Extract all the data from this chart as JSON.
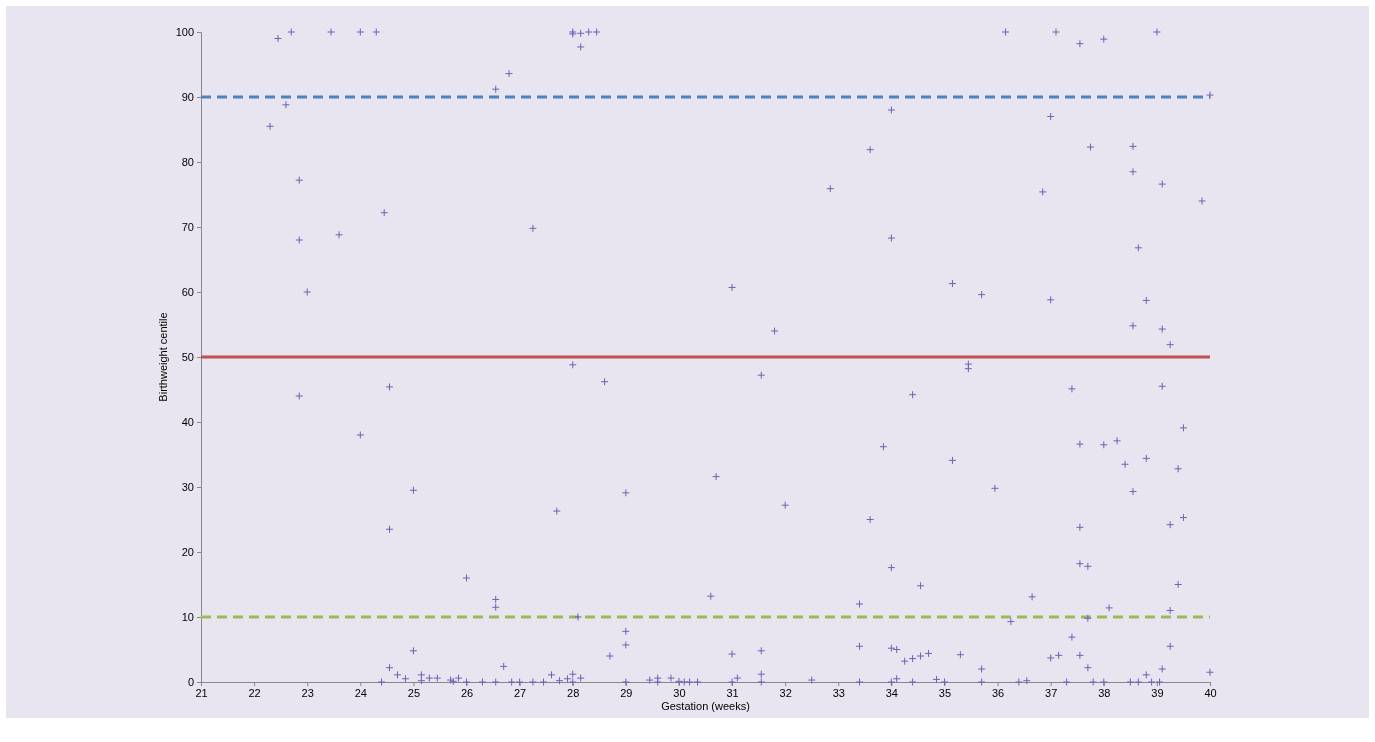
{
  "chart_data": {
    "type": "scatter",
    "xlabel": "Gestation (weeks)",
    "ylabel": "Birthweight centile",
    "marker": "cross",
    "grid": false,
    "xlim": [
      21,
      40
    ],
    "xticks": [
      21,
      22,
      23,
      24,
      25,
      26,
      27,
      28,
      29,
      30,
      31,
      32,
      33,
      34,
      35,
      36,
      37,
      38,
      39,
      40
    ],
    "ylim": [
      0,
      100
    ],
    "yticks": [
      0,
      10,
      20,
      30,
      40,
      50,
      60,
      70,
      80,
      90,
      100
    ],
    "ref_lines": [
      {
        "axis": "y",
        "value": 90,
        "color": "#4f81bd",
        "line_style": "dashed"
      },
      {
        "axis": "y",
        "value": 50,
        "color": "#c0504d",
        "line_style": "solid"
      },
      {
        "axis": "y",
        "value": 10,
        "color": "#9bbb59",
        "line_style": "dashed"
      }
    ],
    "series": [
      {
        "color": "#7060b8",
        "x": [
          22.3,
          22.45,
          22.6,
          22.7,
          22.85,
          22.85,
          22.85,
          23.0,
          23.45,
          23.6,
          24.0,
          24.0,
          24.3,
          24.45,
          24.55,
          24.55,
          25.0,
          26.55,
          26.8,
          27.25,
          26.55,
          26.55,
          26.0,
          28.0,
          28.0,
          28.15,
          28.3,
          28.45,
          28.15,
          28.0,
          28.6,
          27.7,
          29.0,
          28.1,
          29.0,
          29.0,
          28.7,
          30.6,
          30.7,
          31.0,
          31.55,
          31.8,
          32.0,
          31.55,
          31.0,
          32.85,
          33.4,
          33.4,
          33.6,
          33.6,
          33.85,
          34.0,
          34.0,
          34.0,
          34.4,
          34.55,
          34.0,
          34.1,
          34.25,
          34.4,
          34.55,
          34.7,
          35.15,
          35.15,
          35.3,
          35.45,
          35.45,
          35.7,
          35.7,
          35.95,
          36.15,
          36.25,
          36.65,
          36.85,
          37.0,
          37.0,
          37.0,
          37.15,
          37.1,
          37.55,
          37.75,
          38.0,
          37.4,
          37.55,
          37.55,
          37.55,
          37.7,
          37.4,
          37.55,
          37.7,
          37.7,
          38.0,
          38.25,
          38.1,
          38.4,
          38.55,
          38.55,
          38.65,
          38.55,
          38.55,
          38.8,
          38.8,
          39.0,
          39.1,
          39.1,
          39.1,
          39.25,
          39.25,
          39.25,
          39.25,
          39.1,
          38.8,
          39.4,
          39.4,
          39.5,
          39.5,
          39.85,
          40,
          40,
          24.4,
          24.55,
          24.7,
          24.85,
          25.0,
          25.15,
          25.15,
          25.3,
          25.45,
          25.7,
          25.75,
          25.85,
          26.0,
          26.3,
          26.55,
          26.7,
          26.85,
          27.0,
          27.25,
          27.45,
          27.6,
          27.75,
          27.9,
          28.0,
          28.0,
          28.15,
          29.0,
          29.45,
          29.6,
          29.6,
          29.85,
          30.0,
          30.1,
          30.2,
          30.35,
          31.0,
          31.1,
          31.55,
          31.55,
          32.5,
          33.4,
          34.0,
          34.1,
          34.4,
          34.85,
          35.0,
          35.7,
          36.4,
          36.55,
          37.3,
          37.8,
          38.0,
          38.5,
          38.65,
          38.9,
          39.05
        ],
        "values": [
          85.5,
          99,
          88.8,
          100,
          77.2,
          68,
          44,
          60,
          100,
          68.8,
          100,
          38,
          100,
          72.2,
          45.4,
          23.5,
          29.5,
          91.2,
          93.6,
          69.8,
          12.7,
          11.5,
          16,
          100,
          99.7,
          99.8,
          100,
          100,
          97.7,
          48.8,
          46.2,
          26.3,
          29.1,
          10,
          7.8,
          5.7,
          4,
          13.2,
          31.6,
          60.7,
          47.2,
          54,
          27.2,
          4.8,
          4.3,
          75.9,
          12,
          5.5,
          81.9,
          25,
          36.2,
          88,
          68.3,
          17.6,
          44.2,
          14.8,
          5.2,
          5,
          3.2,
          3.6,
          4,
          4.4,
          61.3,
          34.1,
          4.2,
          48.9,
          48.2,
          59.6,
          2,
          29.8,
          100,
          9.3,
          13.1,
          75.4,
          87,
          58.8,
          3.7,
          4.1,
          100,
          98.2,
          82.3,
          98.9,
          45.1,
          36.6,
          23.8,
          18.2,
          17.8,
          6.9,
          4.1,
          2.2,
          9.8,
          36.5,
          37.1,
          11.4,
          33.5,
          82.4,
          78.5,
          66.8,
          54.8,
          29.3,
          58.7,
          34.4,
          100,
          76.6,
          54.3,
          45.5,
          51.9,
          24.2,
          11,
          5.5,
          2,
          1.1,
          32.8,
          15,
          39.1,
          25.3,
          74,
          90.3,
          1.5,
          0,
          2.2,
          1.1,
          0.5,
          4.8,
          1.1,
          0.2,
          0.6,
          0.6,
          0.3,
          0.1,
          0.6,
          0,
          0,
          0,
          2.4,
          0,
          0,
          0,
          0,
          1.1,
          0.2,
          0.5,
          1.2,
          0,
          0.6,
          0,
          0.3,
          0.6,
          0,
          0.6,
          0.1,
          0,
          0,
          0,
          0,
          0.6,
          1.2,
          0,
          0.3,
          0,
          0,
          0.5,
          0,
          0.4,
          0,
          0,
          0,
          0.2,
          0,
          0,
          0,
          0,
          0,
          0,
          0
        ]
      }
    ]
  }
}
